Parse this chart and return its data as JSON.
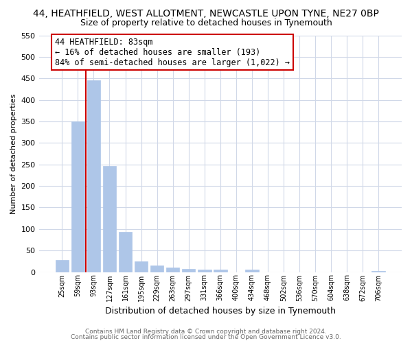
{
  "title": "44, HEATHFIELD, WEST ALLOTMENT, NEWCASTLE UPON TYNE, NE27 0BP",
  "subtitle": "Size of property relative to detached houses in Tynemouth",
  "xlabel": "Distribution of detached houses by size in Tynemouth",
  "ylabel": "Number of detached properties",
  "bar_labels": [
    "25sqm",
    "59sqm",
    "93sqm",
    "127sqm",
    "161sqm",
    "195sqm",
    "229sqm",
    "263sqm",
    "297sqm",
    "331sqm",
    "366sqm",
    "400sqm",
    "434sqm",
    "468sqm",
    "502sqm",
    "536sqm",
    "570sqm",
    "604sqm",
    "638sqm",
    "672sqm",
    "706sqm"
  ],
  "bar_heights": [
    28,
    350,
    445,
    247,
    93,
    25,
    15,
    11,
    7,
    5,
    5,
    0,
    6,
    0,
    0,
    0,
    0,
    0,
    0,
    0,
    3
  ],
  "bar_color": "#AEC6E8",
  "bar_edge_color": "#AEC6E8",
  "vline_color": "#cc0000",
  "vline_pos": 1.5,
  "ylim": [
    0,
    550
  ],
  "yticks": [
    0,
    50,
    100,
    150,
    200,
    250,
    300,
    350,
    400,
    450,
    500,
    550
  ],
  "annotation_title": "44 HEATHFIELD: 83sqm",
  "annotation_line1": "← 16% of detached houses are smaller (193)",
  "annotation_line2": "84% of semi-detached houses are larger (1,022) →",
  "annotation_box_color": "#cc0000",
  "footer_line1": "Contains HM Land Registry data © Crown copyright and database right 2024.",
  "footer_line2": "Contains public sector information licensed under the Open Government Licence v3.0.",
  "background_color": "#ffffff",
  "grid_color": "#d0d8e8"
}
